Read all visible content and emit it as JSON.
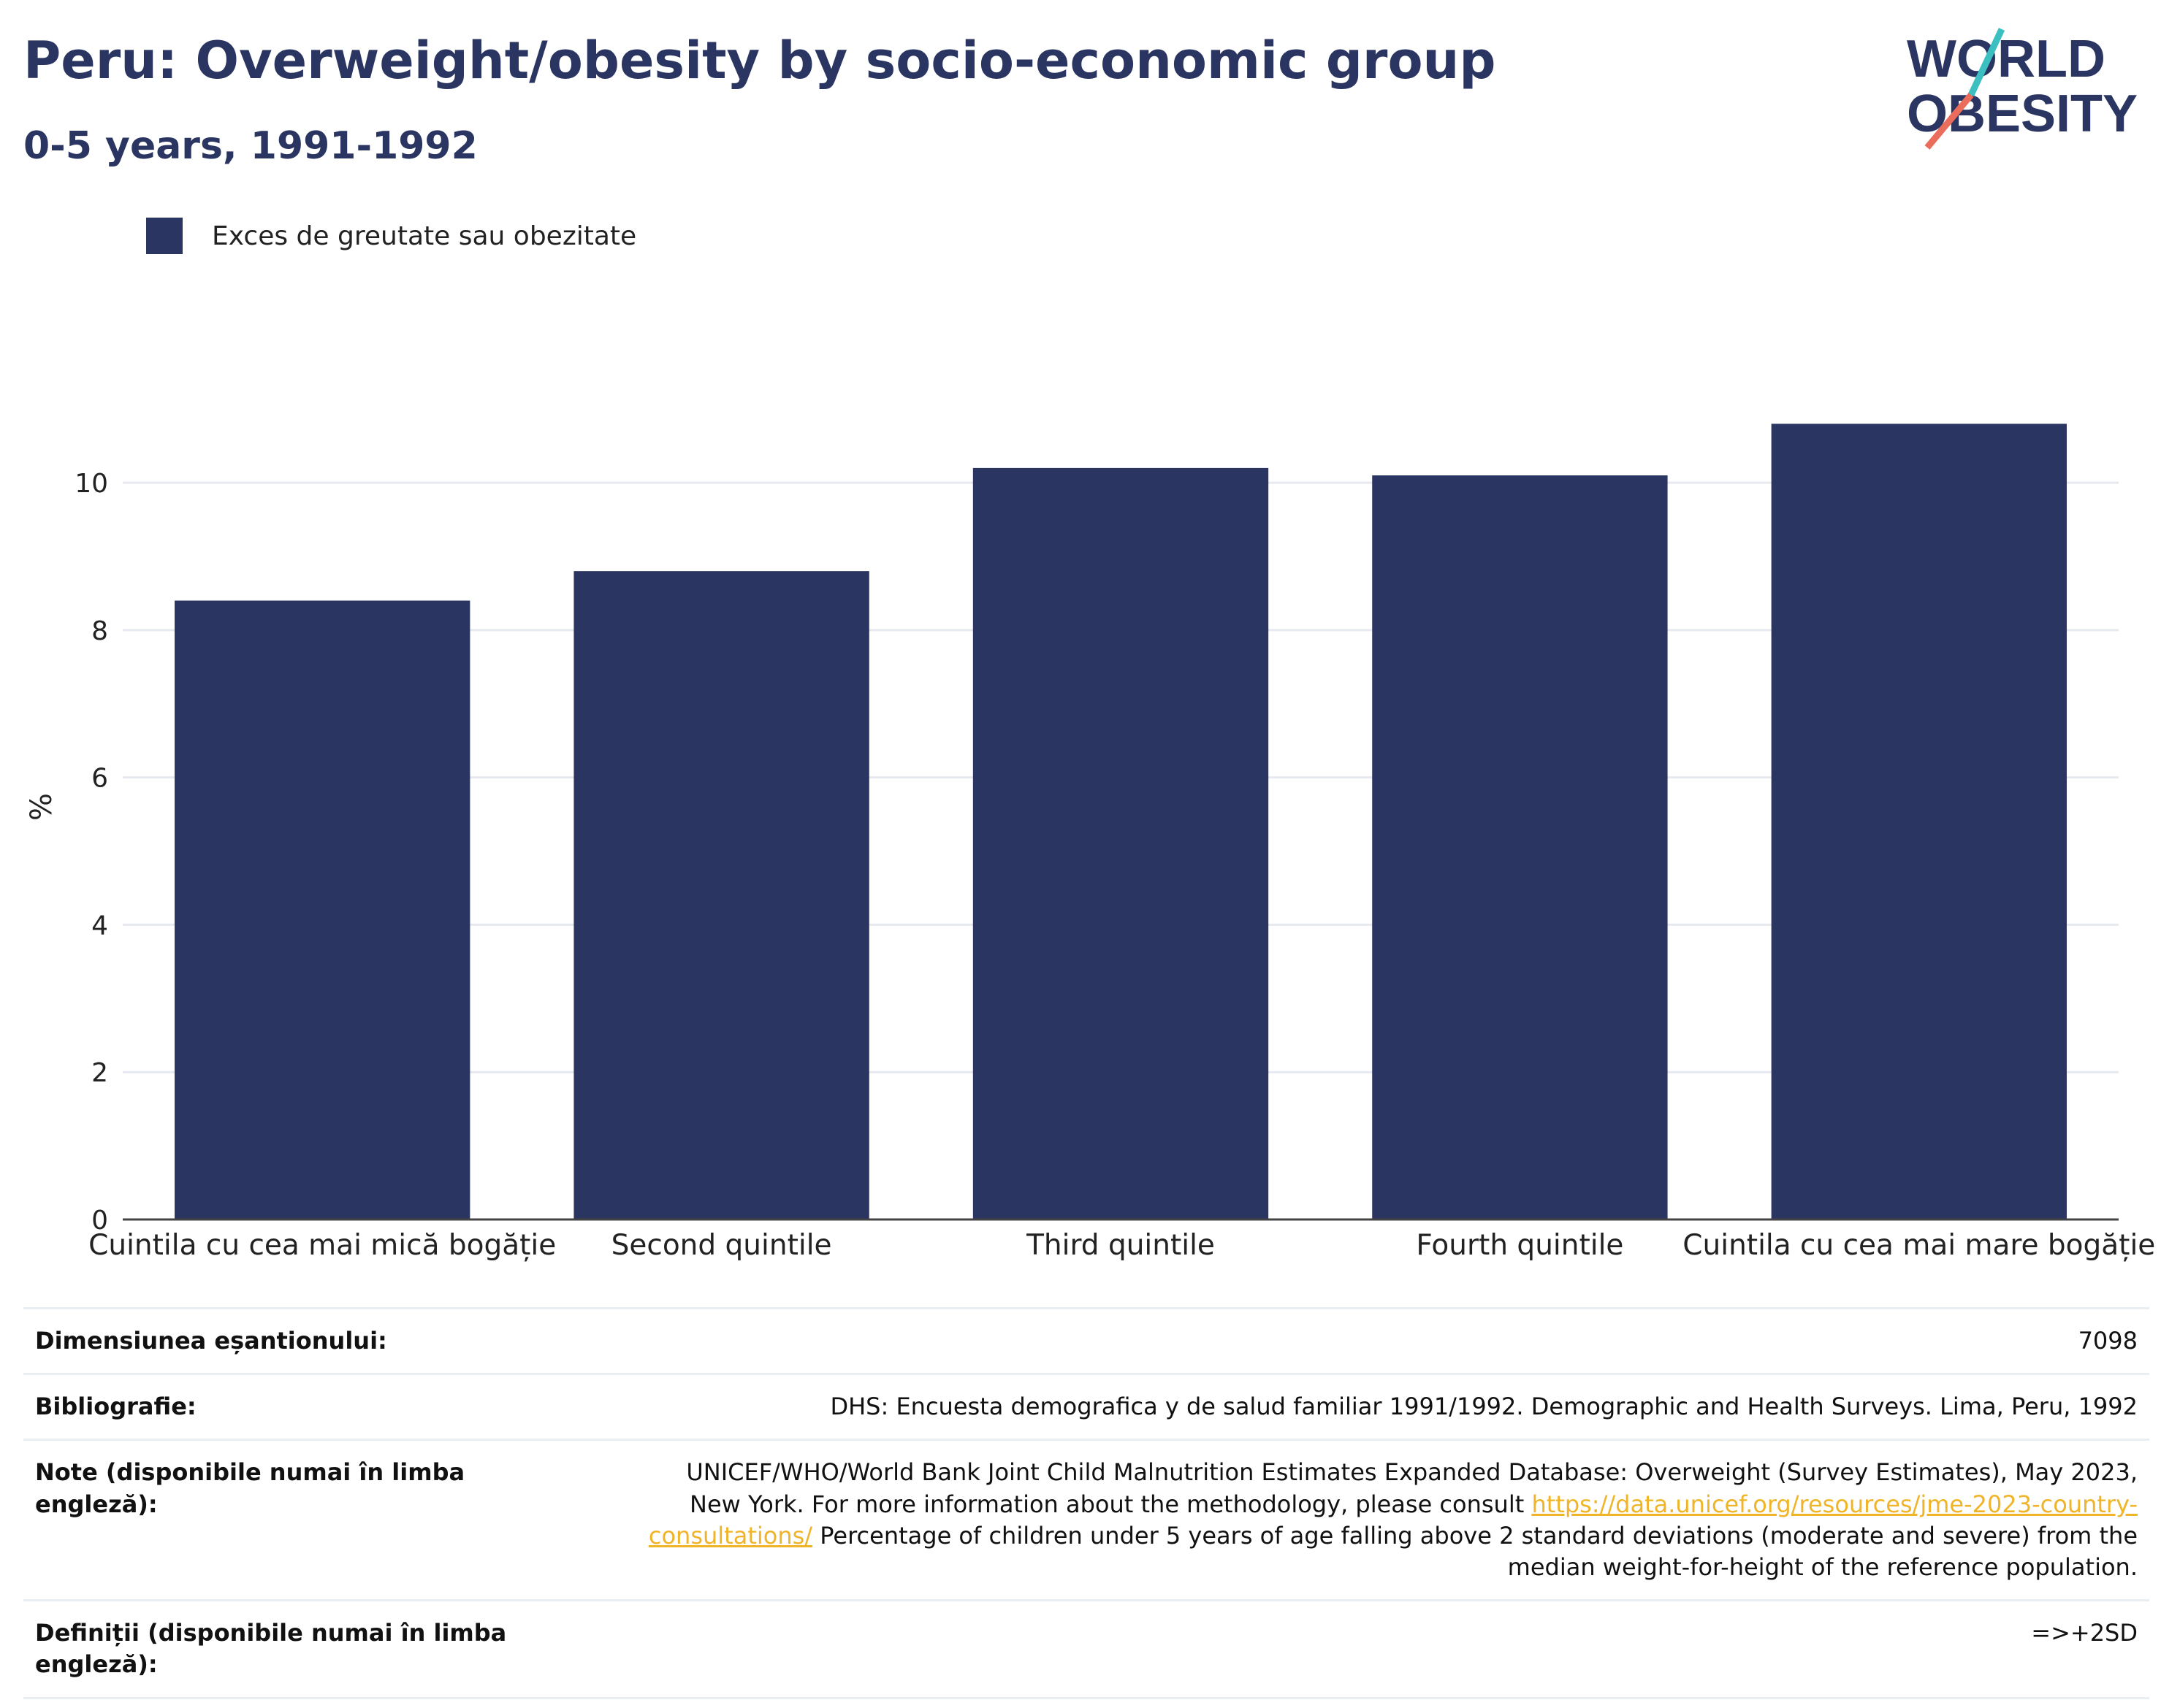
{
  "header": {
    "title": "Peru: Overweight/obesity by socio-economic group",
    "subtitle": "0-5 years, 1991-1992"
  },
  "logo": {
    "line1": "WORLD",
    "line2": "OBESITY"
  },
  "colors": {
    "bar": "#2b3561",
    "grid": "#e6e9ef",
    "accent_teal": "#3bbfc1",
    "accent_coral": "#e96d5a"
  },
  "chart_data": {
    "type": "bar",
    "categories": [
      "Cuintila cu cea mai mică bogăție",
      "Second quintile",
      "Third quintile",
      "Fourth quintile",
      "Cuintila cu cea mai mare bogăție"
    ],
    "series": [
      {
        "name": "Exces de greutate sau obezitate",
        "values": [
          8.4,
          8.8,
          10.2,
          10.1,
          10.8
        ]
      }
    ],
    "ylabel": "%",
    "ylim": [
      0,
      11.2
    ],
    "yticks": [
      0,
      2,
      4,
      6,
      8,
      10
    ],
    "grid": true,
    "legend": "top-left"
  },
  "table": {
    "rows": [
      {
        "label": "Dimensiunea eșantionului:",
        "value": "7098"
      },
      {
        "label": "Bibliografie:",
        "value": "DHS: Encuesta demografica y de salud familiar 1991/1992. Demographic and Health Surveys. Lima, Peru, 1992"
      },
      {
        "label": "Note (disponibile numai în limba engleză):",
        "value_before": "UNICEF/WHO/World Bank Joint Child Malnutrition Estimates Expanded Database: Overweight (Survey Estimates), May 2023, New York. For more information about the methodology, please consult ",
        "link": "https://data.unicef.org/resources/jme-2023-country-consultations/",
        "value_after": " Percentage of children under 5 years of age falling above 2 standard deviations (moderate and severe) from the median weight-for-height of the reference population."
      },
      {
        "label": "Definiții (disponibile numai în limba engleză):",
        "value": "=>+2SD"
      }
    ]
  }
}
